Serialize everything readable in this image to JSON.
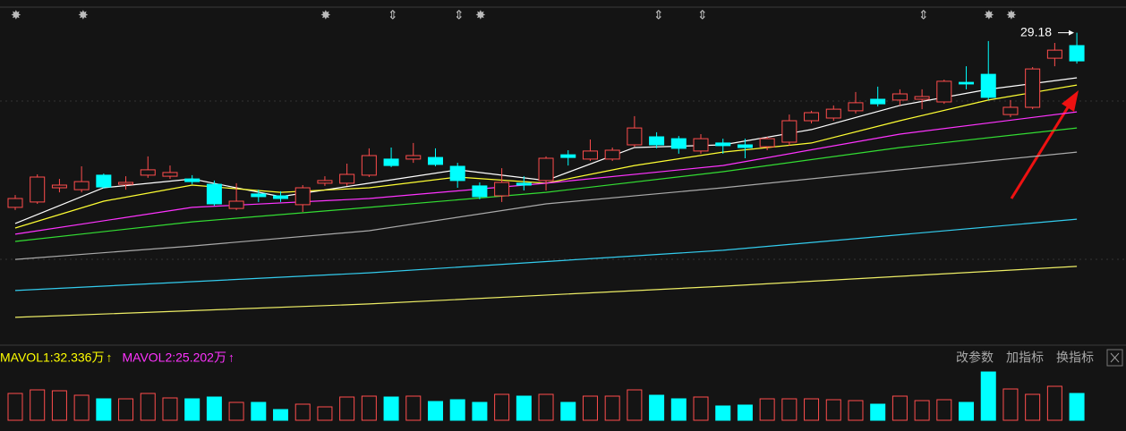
{
  "chart_data": {
    "type": "candlestick",
    "ylim": [
      17.6,
      30.4
    ],
    "up_color": "#ff4d4d",
    "down_color": "#00ffff",
    "high_label": 29.18,
    "candles": {
      "open": [
        22.67,
        22.87,
        23.4,
        23.33,
        23.87,
        23.53,
        23.87,
        23.83,
        23.73,
        23.53,
        22.63,
        23.17,
        23.1,
        22.77,
        23.57,
        23.57,
        23.87,
        24.47,
        24.47,
        24.53,
        24.2,
        23.47,
        23.1,
        23.57,
        23.67,
        24.63,
        24.47,
        24.47,
        25.0,
        25.3,
        25.23,
        24.77,
        25.07,
        25.0,
        24.93,
        25.1,
        25.9,
        26.0,
        26.27,
        26.7,
        26.67,
        26.7,
        26.6,
        27.33,
        27.63,
        26.13,
        26.4,
        28.23,
        28.7
      ],
      "high": [
        23.13,
        23.9,
        23.73,
        24.2,
        23.93,
        23.83,
        24.57,
        24.23,
        23.87,
        23.67,
        23.57,
        23.33,
        23.27,
        23.5,
        23.83,
        24.3,
        24.87,
        24.9,
        25.07,
        24.87,
        24.33,
        23.6,
        24.13,
        23.83,
        24.57,
        24.8,
        25.2,
        24.9,
        26.07,
        25.47,
        25.33,
        25.4,
        25.23,
        25.23,
        25.3,
        26.13,
        26.27,
        26.47,
        26.97,
        27.17,
        27.07,
        27.07,
        27.43,
        27.93,
        28.87,
        26.67,
        27.9,
        28.8,
        29.18
      ],
      "low": [
        22.57,
        22.8,
        23.23,
        23.23,
        23.37,
        23.33,
        23.77,
        23.73,
        23.53,
        22.73,
        22.57,
        22.87,
        22.87,
        22.5,
        23.47,
        23.47,
        23.8,
        24.17,
        24.33,
        24.2,
        23.4,
        22.97,
        22.87,
        23.3,
        23.3,
        24.23,
        24.4,
        24.4,
        24.93,
        24.87,
        24.67,
        24.67,
        24.67,
        24.5,
        24.8,
        24.97,
        25.8,
        25.9,
        26.17,
        26.43,
        26.47,
        26.33,
        26.53,
        27.07,
        26.67,
        26.03,
        26.33,
        27.93,
        28.03
      ],
      "close": [
        23.0,
        23.8,
        23.5,
        23.63,
        23.43,
        23.6,
        24.07,
        23.97,
        23.63,
        22.8,
        22.9,
        23.07,
        23.0,
        23.4,
        23.67,
        23.9,
        24.6,
        24.23,
        24.6,
        24.27,
        23.67,
        23.07,
        23.6,
        23.5,
        24.5,
        24.53,
        24.77,
        24.8,
        25.63,
        25.0,
        24.87,
        25.23,
        24.97,
        24.9,
        25.23,
        25.9,
        26.2,
        26.33,
        26.57,
        26.53,
        26.9,
        26.8,
        27.37,
        27.27,
        26.77,
        26.4,
        27.83,
        28.53,
        28.13
      ]
    },
    "ma_lines": [
      {
        "color": "#ffffff",
        "x": [
          0,
          4,
          8,
          12,
          16,
          20,
          24,
          28,
          32,
          36,
          40,
          44,
          48
        ],
        "values": [
          22.07,
          23.4,
          23.73,
          23.07,
          23.57,
          24.07,
          23.67,
          24.9,
          25.0,
          25.57,
          26.47,
          27.07,
          27.5
        ]
      },
      {
        "color": "#ffff33",
        "x": [
          0,
          4,
          8,
          12,
          16,
          20,
          24,
          28,
          32,
          36,
          40,
          44,
          48
        ],
        "values": [
          21.9,
          22.9,
          23.5,
          23.23,
          23.4,
          23.8,
          23.57,
          24.23,
          24.73,
          25.07,
          25.9,
          26.67,
          27.23
        ]
      },
      {
        "color": "#ff33ff",
        "x": [
          0,
          8,
          16,
          24,
          32,
          40,
          48
        ],
        "values": [
          21.67,
          22.67,
          23.0,
          23.57,
          24.23,
          25.4,
          26.23
        ]
      },
      {
        "color": "#33dd33",
        "x": [
          0,
          8,
          16,
          24,
          32,
          40,
          48
        ],
        "values": [
          21.4,
          22.13,
          22.67,
          23.23,
          24.0,
          24.9,
          25.63
        ]
      },
      {
        "color": "#aaaaaa",
        "x": [
          0,
          8,
          16,
          24,
          32,
          40,
          48
        ],
        "values": [
          20.73,
          21.23,
          21.8,
          22.8,
          23.4,
          24.07,
          24.73
        ]
      },
      {
        "color": "#33ccee",
        "x": [
          0,
          16,
          32,
          48
        ],
        "values": [
          19.57,
          20.23,
          21.07,
          22.23
        ]
      },
      {
        "color": "#eeee66",
        "x": [
          0,
          16,
          32,
          48
        ],
        "values": [
          18.57,
          19.07,
          19.73,
          20.47
        ]
      }
    ],
    "volume": {
      "ylim": [
        0,
        62
      ],
      "values": [
        30,
        34,
        33,
        28,
        24,
        24,
        30,
        25,
        24,
        26,
        20,
        20,
        12,
        18,
        15,
        26,
        27,
        26,
        27,
        21,
        23,
        20,
        29,
        27,
        29,
        20,
        27,
        27,
        34,
        28,
        24,
        26,
        16,
        17,
        24,
        24,
        24,
        23,
        22,
        18,
        27,
        22,
        23,
        20,
        54,
        35,
        29,
        38,
        30
      ],
      "labels": [
        {
          "text": "MAVOL1:32.336万",
          "color": "#ffff00"
        },
        {
          "text": "MAVOL2:25.202万",
          "color": "#ff33ff"
        }
      ]
    },
    "toolbar": [
      "改参数",
      "加指标",
      "换指标"
    ]
  }
}
